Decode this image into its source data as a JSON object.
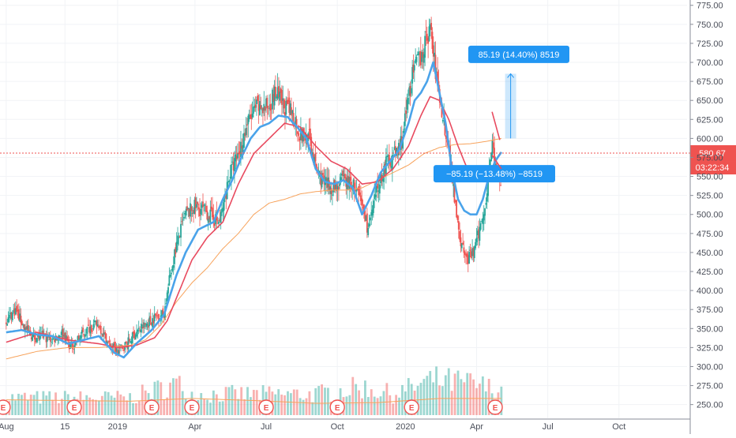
{
  "chart_data": {
    "type": "candlestick",
    "y_ticks": [
      "775.00",
      "750.00",
      "725.00",
      "700.00",
      "675.00",
      "650.00",
      "625.00",
      "600.00",
      "575.00",
      "550.00",
      "525.00",
      "500.00",
      "475.00",
      "450.00",
      "425.00",
      "400.00",
      "375.00",
      "350.00",
      "325.00",
      "300.00",
      "275.00",
      "250.00"
    ],
    "x_ticks": [
      {
        "label": "Aug",
        "t": 0
      },
      {
        "label": "15",
        "t": 19
      },
      {
        "label": "2019",
        "t": 36
      },
      {
        "label": "Apr",
        "t": 61
      },
      {
        "label": "Jul",
        "t": 84
      },
      {
        "label": "Oct",
        "t": 107
      },
      {
        "label": "2020",
        "t": 129
      },
      {
        "label": "Apr",
        "t": 152
      },
      {
        "label": "Jul",
        "t": 175
      },
      {
        "label": "Oct",
        "t": 198
      }
    ],
    "ylim": [
      232,
      782
    ],
    "weeks_range": [
      -2,
      220
    ],
    "price_path": [
      [
        0,
        360
      ],
      [
        3,
        375
      ],
      [
        6,
        350
      ],
      [
        9,
        338
      ],
      [
        12,
        340
      ],
      [
        15,
        335
      ],
      [
        18,
        345
      ],
      [
        21,
        325
      ],
      [
        24,
        340
      ],
      [
        27,
        352
      ],
      [
        30,
        355
      ],
      [
        33,
        330
      ],
      [
        36,
        320
      ],
      [
        39,
        330
      ],
      [
        42,
        345
      ],
      [
        45,
        355
      ],
      [
        48,
        365
      ],
      [
        51,
        370
      ],
      [
        53,
        420
      ],
      [
        55,
        460
      ],
      [
        58,
        500
      ],
      [
        61,
        510
      ],
      [
        64,
        505
      ],
      [
        67,
        495
      ],
      [
        69,
        490
      ],
      [
        72,
        550
      ],
      [
        75,
        580
      ],
      [
        78,
        620
      ],
      [
        81,
        640
      ],
      [
        84,
        640
      ],
      [
        87,
        660
      ],
      [
        90,
        640
      ],
      [
        93,
        630
      ],
      [
        95,
        605
      ],
      [
        98,
        600
      ],
      [
        100,
        560
      ],
      [
        103,
        540
      ],
      [
        106,
        535
      ],
      [
        109,
        545
      ],
      [
        112,
        540
      ],
      [
        115,
        510
      ],
      [
        117,
        480
      ],
      [
        120,
        535
      ],
      [
        123,
        570
      ],
      [
        126,
        580
      ],
      [
        128,
        600
      ],
      [
        131,
        680
      ],
      [
        133,
        700
      ],
      [
        135,
        720
      ],
      [
        137,
        745
      ],
      [
        139,
        680
      ],
      [
        141,
        630
      ],
      [
        143,
        590
      ],
      [
        145,
        520
      ],
      [
        147,
        460
      ],
      [
        149,
        440
      ],
      [
        151,
        450
      ],
      [
        153,
        480
      ],
      [
        155,
        520
      ],
      [
        157,
        600
      ],
      [
        158,
        560
      ],
      [
        159,
        545
      ]
    ],
    "ma_blue_path": [
      [
        0,
        345
      ],
      [
        5,
        348
      ],
      [
        10,
        342
      ],
      [
        15,
        340
      ],
      [
        20,
        330
      ],
      [
        25,
        335
      ],
      [
        30,
        340
      ],
      [
        35,
        318
      ],
      [
        38,
        312
      ],
      [
        42,
        330
      ],
      [
        47,
        348
      ],
      [
        51,
        368
      ],
      [
        55,
        420
      ],
      [
        58,
        450
      ],
      [
        62,
        480
      ],
      [
        67,
        490
      ],
      [
        70,
        520
      ],
      [
        73,
        545
      ],
      [
        76,
        575
      ],
      [
        79,
        600
      ],
      [
        82,
        615
      ],
      [
        85,
        620
      ],
      [
        88,
        630
      ],
      [
        91,
        628
      ],
      [
        94,
        615
      ],
      [
        97,
        600
      ],
      [
        100,
        560
      ],
      [
        103,
        543
      ],
      [
        106,
        540
      ],
      [
        109,
        545
      ],
      [
        112,
        535
      ],
      [
        115,
        500
      ],
      [
        118,
        525
      ],
      [
        121,
        555
      ],
      [
        124,
        570
      ],
      [
        127,
        585
      ],
      [
        130,
        620
      ],
      [
        132,
        650
      ],
      [
        134,
        660
      ],
      [
        136,
        675
      ],
      [
        138,
        700
      ],
      [
        140,
        660
      ],
      [
        142,
        620
      ],
      [
        144,
        560
      ],
      [
        146,
        520
      ],
      [
        148,
        505
      ],
      [
        150,
        500
      ],
      [
        152,
        500
      ],
      [
        154,
        520
      ],
      [
        156,
        550
      ],
      [
        158,
        570
      ],
      [
        160,
        582
      ]
    ],
    "ma_red_path": [
      [
        0,
        332
      ],
      [
        10,
        345
      ],
      [
        20,
        335
      ],
      [
        30,
        330
      ],
      [
        36,
        325
      ],
      [
        42,
        328
      ],
      [
        48,
        338
      ],
      [
        52,
        360
      ],
      [
        56,
        400
      ],
      [
        60,
        440
      ],
      [
        65,
        470
      ],
      [
        70,
        490
      ],
      [
        75,
        540
      ],
      [
        80,
        580
      ],
      [
        85,
        600
      ],
      [
        90,
        620
      ],
      [
        95,
        615
      ],
      [
        100,
        590
      ],
      [
        105,
        570
      ],
      [
        110,
        560
      ],
      [
        115,
        540
      ],
      [
        120,
        543
      ],
      [
        125,
        560
      ],
      [
        130,
        590
      ],
      [
        134,
        630
      ],
      [
        137,
        655
      ],
      [
        140,
        650
      ],
      [
        143,
        625
      ],
      [
        146,
        590
      ],
      [
        149,
        560
      ],
      [
        152,
        550
      ],
      [
        155,
        548
      ],
      [
        157,
        555
      ],
      [
        160,
        565
      ]
    ],
    "ma_orange_path": [
      [
        0,
        310
      ],
      [
        10,
        320
      ],
      [
        20,
        325
      ],
      [
        30,
        325
      ],
      [
        40,
        328
      ],
      [
        45,
        335
      ],
      [
        50,
        355
      ],
      [
        55,
        385
      ],
      [
        60,
        410
      ],
      [
        65,
        430
      ],
      [
        70,
        455
      ],
      [
        75,
        475
      ],
      [
        80,
        500
      ],
      [
        85,
        515
      ],
      [
        90,
        520
      ],
      [
        95,
        527
      ],
      [
        100,
        530
      ],
      [
        105,
        532
      ],
      [
        110,
        532
      ],
      [
        115,
        535
      ],
      [
        120,
        545
      ],
      [
        125,
        555
      ],
      [
        130,
        565
      ],
      [
        135,
        580
      ],
      [
        140,
        588
      ],
      [
        145,
        592
      ],
      [
        150,
        593
      ],
      [
        155,
        596
      ],
      [
        160,
        600
      ]
    ],
    "volume_path": [
      [
        0,
        0.25
      ],
      [
        40,
        0.25
      ],
      [
        55,
        0.45
      ],
      [
        60,
        0.3
      ],
      [
        100,
        0.3
      ],
      [
        115,
        0.4
      ],
      [
        125,
        0.3
      ],
      [
        138,
        0.5
      ],
      [
        150,
        0.45
      ],
      [
        160,
        0.35
      ]
    ],
    "volume_ma_path": [
      [
        0,
        0.22
      ],
      [
        40,
        0.2
      ],
      [
        60,
        0.24
      ],
      [
        80,
        0.21
      ],
      [
        100,
        0.17
      ],
      [
        120,
        0.18
      ],
      [
        140,
        0.24
      ],
      [
        160,
        0.24
      ]
    ],
    "earnings_weeks": [
      -1,
      22,
      47,
      60,
      84,
      107,
      131,
      158
    ],
    "current_price": "580.67",
    "countdown": "03:22:34",
    "colors": {
      "up": "#26a69a",
      "down": "#ef5350",
      "ma_blue": "#4aa3ea",
      "ma_red": "#e84a5f",
      "ma_orange": "#f7a35c",
      "price_line": "#ef5350",
      "measure": "#2196f3"
    }
  },
  "measure_up": {
    "label": "85.19 (14.40%) 8519"
  },
  "measure_down": {
    "label": "−85.19 (−13.48%) −8519"
  },
  "earnings_label": "E"
}
